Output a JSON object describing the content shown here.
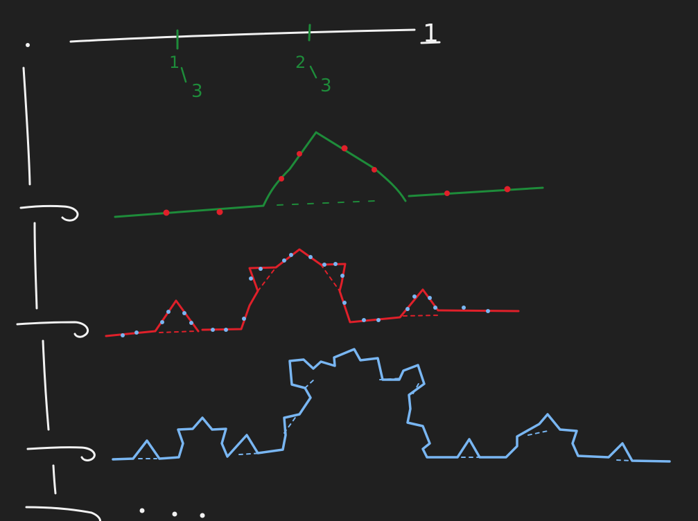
{
  "colors": {
    "background": "#202020",
    "chalk": "#f2f2f2",
    "green": "#1e8c3a",
    "red": "#e0202a",
    "blue": "#79b6f2"
  },
  "unit_interval": {
    "end_label": "1",
    "tick_labels": [
      {
        "num": "1",
        "den": "3"
      },
      {
        "num": "2",
        "den": "3"
      }
    ]
  },
  "ellipsis": "· · ·"
}
